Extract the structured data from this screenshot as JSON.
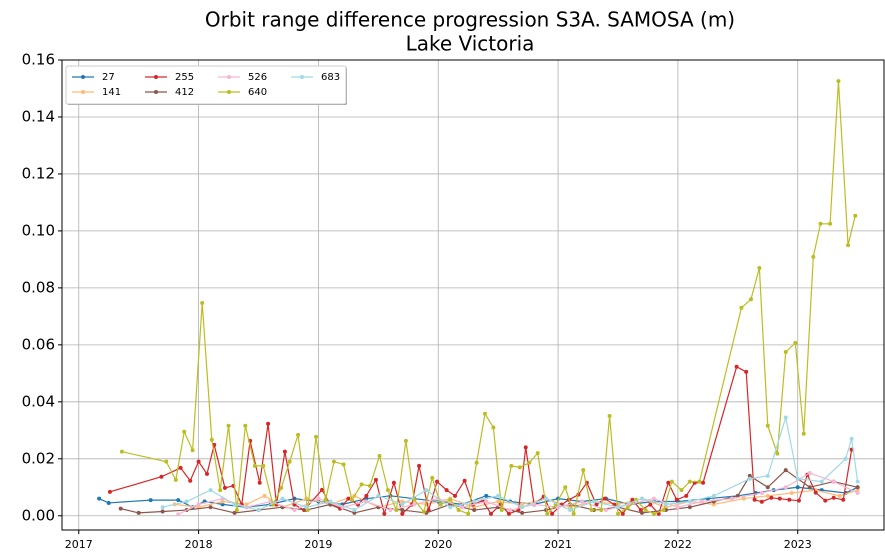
{
  "chart_data": {
    "type": "line",
    "title": "Orbit range difference progression S3A.  SAMOSA (m)",
    "subtitle": "Lake Victoria",
    "xlim": [
      2016.86,
      2023.72
    ],
    "xticks": [
      2017,
      2018,
      2019,
      2020,
      2021,
      2022,
      2023
    ],
    "ylim": [
      -0.005,
      0.16
    ],
    "yticks": [
      {
        "value": 0,
        "label": "0.00"
      },
      {
        "value": 0.02,
        "label": "0.02"
      },
      {
        "value": 0.04,
        "label": "0.04"
      },
      {
        "value": 0.06,
        "label": "0.06"
      },
      {
        "value": 0.08,
        "label": "0.08"
      },
      {
        "value": 0.1,
        "label": "0.10"
      },
      {
        "value": 0.12,
        "label": "0.12"
      },
      {
        "value": 0.14,
        "label": "0.14"
      },
      {
        "value": 0.16,
        "label": "0.16"
      }
    ],
    "grid": true,
    "legend": "upper left",
    "series": [
      {
        "name": "27",
        "color": "#1f77b4",
        "x": [
          2017.17,
          2017.25,
          2017.6,
          2017.83,
          2017.95,
          2018.05,
          2018.2,
          2018.4,
          2018.6,
          2018.8,
          2019.0,
          2019.2,
          2019.4,
          2019.6,
          2019.8,
          2020.0,
          2020.2,
          2020.4,
          2020.6,
          2020.8,
          2021.0,
          2021.2,
          2021.4,
          2021.6,
          2021.8,
          2022.0,
          2022.25,
          2022.5,
          2022.65,
          2022.8,
          2023.0,
          2023.2,
          2023.4,
          2023.5
        ],
        "values": [
          0.006,
          0.0045,
          0.0055,
          0.0055,
          0.003,
          0.005,
          0.004,
          0.003,
          0.004,
          0.006,
          0.005,
          0.004,
          0.006,
          0.007,
          0.006,
          0.005,
          0.004,
          0.007,
          0.005,
          0.004,
          0.006,
          0.005,
          0.006,
          0.004,
          0.005,
          0.005,
          0.006,
          0.007,
          0.008,
          0.009,
          0.01,
          0.009,
          0.008,
          0.01
        ]
      },
      {
        "name": "141",
        "color": "#ffbb78",
        "x": [
          2017.8,
          2018.0,
          2018.2,
          2018.4,
          2018.55,
          2018.7,
          2018.9,
          2019.1,
          2019.3,
          2019.5,
          2019.7,
          2019.9,
          2020.1,
          2020.3,
          2020.5,
          2020.7,
          2020.9,
          2021.1,
          2021.3,
          2021.5,
          2021.7,
          2021.9,
          2022.1,
          2022.3,
          2022.55,
          2022.75,
          2022.95,
          2023.15,
          2023.35,
          2023.5
        ],
        "values": [
          0.004,
          0.003,
          0.005,
          0.004,
          0.007,
          0.003,
          0.006,
          0.004,
          0.007,
          0.003,
          0.005,
          0.004,
          0.006,
          0.003,
          0.005,
          0.004,
          0.006,
          0.003,
          0.005,
          0.004,
          0.006,
          0.003,
          0.005,
          0.004,
          0.006,
          0.007,
          0.008,
          0.009,
          0.007,
          0.009
        ]
      },
      {
        "name": "255",
        "color": "#d62728",
        "x": [
          2017.26,
          2017.69,
          2017.85,
          2017.93,
          2018.0,
          2018.07,
          2018.13,
          2018.22,
          2018.29,
          2018.36,
          2018.43,
          2018.51,
          2018.58,
          2018.65,
          2018.72,
          2018.8,
          2018.88,
          2019.03,
          2019.1,
          2019.18,
          2019.25,
          2019.33,
          2019.4,
          2019.48,
          2019.55,
          2019.63,
          2019.7,
          2019.78,
          2019.84,
          2019.92,
          2019.99,
          2020.07,
          2020.14,
          2020.22,
          2020.29,
          2020.37,
          2020.44,
          2020.52,
          2020.59,
          2020.67,
          2020.73,
          2020.8,
          2020.88,
          2020.95,
          2021.03,
          2021.09,
          2021.17,
          2021.24,
          2021.32,
          2021.39,
          2021.47,
          2021.54,
          2021.62,
          2021.69,
          2021.77,
          2021.84,
          2021.92,
          2021.99,
          2022.07,
          2022.14,
          2022.21,
          2022.49,
          2022.57,
          2022.64,
          2022.7,
          2022.78,
          2022.85,
          2022.93,
          2023.01,
          2023.08,
          2023.15,
          2023.23,
          2023.3,
          2023.38,
          2023.45
        ],
        "values": [
          0.0084,
          0.0137,
          0.0168,
          0.0123,
          0.019,
          0.0147,
          0.0249,
          0.0098,
          0.0105,
          0.0039,
          0.0263,
          0.0116,
          0.0323,
          0.0039,
          0.0225,
          0.0039,
          0.002,
          0.0091,
          0.0039,
          0.0025,
          0.006,
          0.0039,
          0.007,
          0.0126,
          0.0007,
          0.0116,
          0.0007,
          0.0039,
          0.0175,
          0.002,
          0.012,
          0.009,
          0.007,
          0.0123,
          0.0039,
          0.0053,
          0.0007,
          0.0039,
          0.0007,
          0.002,
          0.024,
          0.0039,
          0.0067,
          0.0007,
          0.0039,
          0.0056,
          0.0074,
          0.0116,
          0.0039,
          0.006,
          0.0039,
          0.0007,
          0.0056,
          0.002,
          0.0039,
          0.0007,
          0.0116,
          0.0056,
          0.007,
          0.0116,
          0.0116,
          0.0523,
          0.0505,
          0.0056,
          0.0049,
          0.0063,
          0.006,
          0.0056,
          0.0053,
          0.0144,
          0.0081,
          0.0053,
          0.0063,
          0.0056,
          0.0232
        ]
      },
      {
        "name": "412",
        "color": "#8c564b",
        "x": [
          2017.35,
          2017.5,
          2017.7,
          2017.9,
          2018.1,
          2018.3,
          2018.5,
          2018.7,
          2018.9,
          2019.1,
          2019.3,
          2019.5,
          2019.7,
          2019.9,
          2020.1,
          2020.3,
          2020.5,
          2020.7,
          2020.9,
          2021.1,
          2021.3,
          2021.5,
          2021.7,
          2021.9,
          2022.1,
          2022.3,
          2022.5,
          2022.6,
          2022.75,
          2022.9,
          2023.1,
          2023.3,
          2023.5
        ],
        "values": [
          0.0025,
          0.001,
          0.0015,
          0.002,
          0.003,
          0.001,
          0.002,
          0.003,
          0.002,
          0.004,
          0.001,
          0.003,
          0.002,
          0.001,
          0.004,
          0.002,
          0.003,
          0.001,
          0.002,
          0.004,
          0.002,
          0.003,
          0.001,
          0.002,
          0.003,
          0.005,
          0.007,
          0.014,
          0.01,
          0.016,
          0.01,
          0.012,
          0.01
        ]
      },
      {
        "name": "526",
        "color": "#f7b6d2",
        "x": [
          2017.83,
          2018.0,
          2018.2,
          2018.4,
          2018.6,
          2018.8,
          2019.0,
          2019.2,
          2019.4,
          2019.6,
          2019.8,
          2020.0,
          2020.2,
          2020.4,
          2020.6,
          2020.8,
          2021.0,
          2021.2,
          2021.4,
          2021.6,
          2021.8,
          2022.0,
          2022.2,
          2022.45,
          2022.7,
          2022.9,
          2023.1,
          2023.3,
          2023.5
        ],
        "values": [
          0.0005,
          0.004,
          0.006,
          0.003,
          0.005,
          0.002,
          0.006,
          0.003,
          0.005,
          0.002,
          0.004,
          0.006,
          0.003,
          0.005,
          0.002,
          0.004,
          0.003,
          0.005,
          0.002,
          0.004,
          0.006,
          0.003,
          0.005,
          0.006,
          0.008,
          0.01,
          0.015,
          0.012,
          0.008
        ]
      },
      {
        "name": "640",
        "color": "#bcbd22",
        "x": [
          2017.36,
          2017.73,
          2017.81,
          2017.88,
          2017.95,
          2018.03,
          2018.11,
          2018.18,
          2018.25,
          2018.32,
          2018.39,
          2018.47,
          2018.54,
          2018.62,
          2018.69,
          2018.76,
          2018.83,
          2018.91,
          2018.98,
          2019.06,
          2019.13,
          2019.21,
          2019.28,
          2019.36,
          2019.43,
          2019.51,
          2019.58,
          2019.65,
          2019.73,
          2019.8,
          2019.88,
          2019.95,
          2020.02,
          2020.1,
          2020.17,
          2020.25,
          2020.32,
          2020.39,
          2020.46,
          2020.53,
          2020.61,
          2020.68,
          2020.76,
          2020.83,
          2020.91,
          2020.98,
          2021.06,
          2021.13,
          2021.21,
          2021.28,
          2021.36,
          2021.43,
          2021.5,
          2021.58,
          2021.65,
          2021.73,
          2021.8,
          2021.88,
          2021.95,
          2022.03,
          2022.1,
          2022.18,
          2022.53,
          2022.61,
          2022.68,
          2022.75,
          2022.83,
          2022.9,
          2022.98,
          2023.05,
          2023.13,
          2023.19,
          2023.27,
          2023.34,
          2023.42,
          2023.48
        ],
        "values": [
          0.0225,
          0.019,
          0.0126,
          0.0295,
          0.023,
          0.0747,
          0.0267,
          0.009,
          0.0316,
          0.002,
          0.0316,
          0.0175,
          0.0175,
          0.0039,
          0.0098,
          0.019,
          0.0284,
          0.002,
          0.0277,
          0.0056,
          0.019,
          0.018,
          0.0056,
          0.011,
          0.0105,
          0.021,
          0.009,
          0.002,
          0.0263,
          0.0056,
          0.0014,
          0.0133,
          0.0039,
          0.0056,
          0.002,
          0.0007,
          0.0186,
          0.0358,
          0.031,
          0.002,
          0.0175,
          0.017,
          0.0186,
          0.022,
          0.0007,
          0.0039,
          0.01,
          0.0007,
          0.016,
          0.002,
          0.002,
          0.035,
          0.0007,
          0.0028,
          0.0056,
          0.002,
          0.0007,
          0.002,
          0.012,
          0.009,
          0.012,
          0.012,
          0.073,
          0.076,
          0.087,
          0.0316,
          0.0218,
          0.0575,
          0.0607,
          0.0288,
          0.0909,
          0.1025,
          0.1025,
          0.1526,
          0.095,
          0.1053
        ]
      },
      {
        "name": "683",
        "color": "#9edae5",
        "x": [
          2017.7,
          2017.9,
          2018.1,
          2018.3,
          2018.5,
          2018.7,
          2018.9,
          2019.1,
          2019.3,
          2019.5,
          2019.7,
          2019.9,
          2020.1,
          2020.3,
          2020.5,
          2020.7,
          2020.9,
          2021.1,
          2021.3,
          2021.5,
          2021.7,
          2021.9,
          2022.1,
          2022.3,
          2022.6,
          2022.75,
          2022.9,
          2023.0,
          2023.2,
          2023.4,
          2023.45,
          2023.5
        ],
        "values": [
          0.003,
          0.005,
          0.009,
          0.004,
          0.002,
          0.006,
          0.003,
          0.005,
          0.002,
          0.007,
          0.004,
          0.009,
          0.003,
          0.005,
          0.007,
          0.003,
          0.006,
          0.002,
          0.005,
          0.003,
          0.006,
          0.004,
          0.005,
          0.007,
          0.013,
          0.014,
          0.0345,
          0.013,
          0.012,
          0.02,
          0.027,
          0.012
        ]
      }
    ]
  }
}
